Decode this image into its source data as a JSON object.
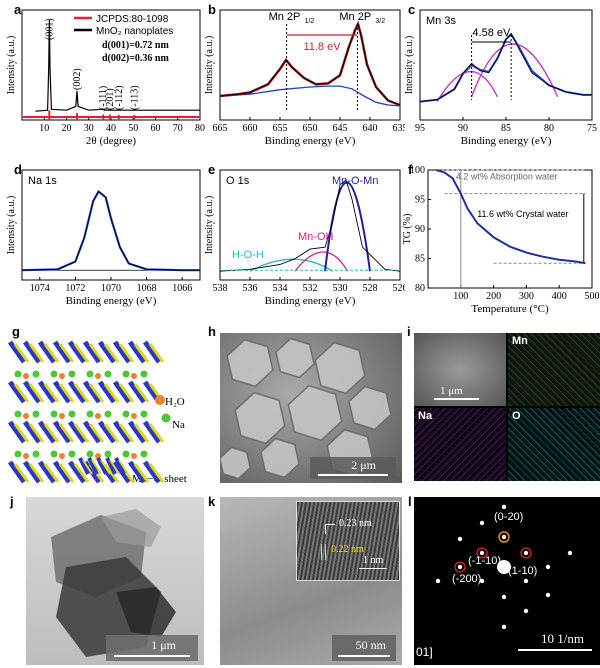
{
  "panel_letters": {
    "a": "a",
    "b": "b",
    "c": "c",
    "d": "d",
    "e": "e",
    "f": "f",
    "g": "g",
    "h": "h",
    "i": "i",
    "j": "j",
    "k": "k",
    "l": "l"
  },
  "chart_data": [
    {
      "panel": "a",
      "type": "line",
      "xlabel": "2θ (degree)",
      "ylabel": "Intensity (a.u.)",
      "xlim": [
        0,
        80
      ],
      "xticks": [
        10,
        20,
        30,
        40,
        50,
        60,
        70,
        80
      ],
      "legend": [
        "JCPDS:80-1098",
        "MnO₂ nanoplates"
      ],
      "legend_extra": [
        "d(001)=0.72 nm",
        "d(002)=0.36 nm"
      ],
      "colors": {
        "reference": "#e8202a",
        "sample": "#000000"
      },
      "peak_labels": [
        {
          "x": 12.3,
          "text": "(001)"
        },
        {
          "x": 24.7,
          "text": "(002)"
        },
        {
          "x": 36.5,
          "text": "(-111)"
        },
        {
          "x": 39.5,
          "text": "(201)"
        },
        {
          "x": 43.5,
          "text": "(-112)"
        },
        {
          "x": 50.5,
          "text": "(-113)"
        }
      ],
      "series": [
        {
          "name": "MnO₂ nanoplates",
          "x": [
            6,
            11.5,
            12.0,
            12.3,
            12.6,
            13.2,
            20,
            24.2,
            24.7,
            25.2,
            30,
            36.5,
            37,
            40,
            50,
            60,
            70,
            80
          ],
          "values": [
            0.05,
            0.06,
            0.5,
            1.0,
            0.5,
            0.07,
            0.06,
            0.1,
            0.26,
            0.1,
            0.06,
            0.07,
            0.06,
            0.06,
            0.06,
            0.06,
            0.06,
            0.06
          ]
        },
        {
          "name": "JCPDS:80-1098",
          "x": [
            12.3,
            24.7,
            36.5,
            39.5,
            43.5,
            50.5
          ],
          "values": [
            0.06,
            0.03,
            0.015,
            0.015,
            0.012,
            0.012
          ]
        }
      ]
    },
    {
      "panel": "b",
      "type": "line",
      "xlabel": "Binding energy (eV)",
      "ylabel": "Intensity (a.u.)",
      "xlim": [
        665,
        635
      ],
      "xticks": [
        665,
        660,
        655,
        650,
        645,
        640,
        635
      ],
      "annotations": [
        "Mn 2P",
        "1/2",
        "Mn 2P",
        "3/2",
        "11.8 eV"
      ],
      "peaks": [
        653.9,
        642.1
      ],
      "colors": {
        "data": "#000000",
        "fit": "#8b1a1a",
        "background": "#1f3fbf",
        "delta": "#c0282f"
      },
      "series": [
        {
          "name": "data",
          "x": [
            665,
            662,
            660,
            657,
            655,
            654,
            653,
            651,
            649,
            647,
            645,
            643.5,
            642.5,
            642,
            641.5,
            640.5,
            639,
            637,
            635
          ],
          "values": [
            0.2,
            0.22,
            0.24,
            0.33,
            0.5,
            0.6,
            0.52,
            0.4,
            0.33,
            0.34,
            0.43,
            0.75,
            0.93,
            1.0,
            0.88,
            0.55,
            0.3,
            0.15,
            0.1
          ]
        },
        {
          "name": "background",
          "x": [
            665,
            660,
            655,
            650,
            647,
            645,
            643,
            641,
            639,
            637,
            635
          ],
          "values": [
            0.2,
            0.22,
            0.27,
            0.3,
            0.31,
            0.31,
            0.28,
            0.2,
            0.13,
            0.1,
            0.09
          ]
        }
      ]
    },
    {
      "panel": "c",
      "type": "line",
      "title": "Mn 3s",
      "xlabel": "Binding energy (eV)",
      "ylabel": "Intensity (a.u.)",
      "xlim": [
        95,
        75
      ],
      "xticks": [
        95,
        90,
        85,
        80,
        75
      ],
      "annotations": [
        "4.58 eV"
      ],
      "peaks": [
        89.0,
        84.4
      ],
      "colors": {
        "data": "#000000",
        "peak": "#cc33cc",
        "envelope": "#1f3fbf"
      },
      "series": [
        {
          "name": "data",
          "x": [
            95,
            93,
            91,
            90,
            89,
            88,
            87,
            86,
            85,
            84.4,
            83.5,
            82,
            80,
            78,
            76,
            75
          ],
          "values": [
            0.15,
            0.17,
            0.28,
            0.45,
            0.55,
            0.47,
            0.45,
            0.6,
            0.8,
            0.86,
            0.7,
            0.45,
            0.32,
            0.25,
            0.22,
            0.22
          ]
        },
        {
          "name": "envelope",
          "x": [
            95,
            93,
            91,
            90,
            89,
            88,
            87,
            86,
            85,
            84.4,
            83.5,
            82,
            80,
            78,
            76,
            75
          ],
          "values": [
            0.15,
            0.17,
            0.28,
            0.44,
            0.53,
            0.48,
            0.46,
            0.6,
            0.8,
            0.85,
            0.72,
            0.47,
            0.32,
            0.25,
            0.22,
            0.22
          ]
        }
      ]
    },
    {
      "panel": "d",
      "type": "line",
      "title": "Na 1s",
      "xlabel": "Binding energy (eV)",
      "ylabel": "Intensity (a.u.)",
      "xlim": [
        1075,
        1065
      ],
      "xticks": [
        1074,
        1072,
        1070,
        1068,
        1066
      ],
      "colors": {
        "data": "#000000",
        "fit": "#1f3fbf"
      },
      "series": [
        {
          "name": "data",
          "x": [
            1075,
            1073,
            1072,
            1071.5,
            1071,
            1070.7,
            1070.3,
            1070,
            1069.5,
            1069,
            1068,
            1066,
            1065
          ],
          "values": [
            0.06,
            0.07,
            0.15,
            0.4,
            0.78,
            0.88,
            0.82,
            0.6,
            0.3,
            0.13,
            0.07,
            0.06,
            0.06
          ]
        }
      ]
    },
    {
      "panel": "e",
      "type": "line",
      "title": "O 1s",
      "xlabel": "Binding energy (eV)",
      "ylabel": "Intensity (a.u.)",
      "xlim": [
        538,
        526
      ],
      "xticks": [
        538,
        536,
        534,
        532,
        530,
        528,
        526
      ],
      "annotations": [
        "Mn-O-Mn",
        "Mn-OH",
        "H-O-H"
      ],
      "colors": {
        "data": "#000000",
        "mnomn": "#1f1f9f",
        "mnoh": "#cc2288",
        "hoh": "#22bbbb",
        "envelope": "#cc2222"
      },
      "series": [
        {
          "name": "data",
          "x": [
            538,
            536,
            534,
            533,
            532,
            531,
            530.5,
            530,
            529.6,
            529.2,
            528.5,
            527,
            526
          ],
          "values": [
            0.05,
            0.07,
            0.12,
            0.18,
            0.28,
            0.3,
            0.55,
            0.95,
            1.0,
            0.8,
            0.3,
            0.07,
            0.05
          ]
        }
      ]
    },
    {
      "panel": "f",
      "type": "line",
      "xlabel": "Temperature (°C)",
      "ylabel": "TG (%)",
      "xlim": [
        0,
        500
      ],
      "ylim": [
        80,
        100
      ],
      "xticks": [
        100,
        200,
        300,
        400,
        500
      ],
      "yticks": [
        80,
        85,
        90,
        95,
        100
      ],
      "annotations": [
        "4.2 wt% Absorption water",
        "11.6 wt% Crystal water"
      ],
      "colors": {
        "line": "#1f2fa6"
      },
      "series": [
        {
          "name": "TG",
          "x": [
            25,
            50,
            75,
            100,
            120,
            150,
            200,
            250,
            300,
            350,
            400,
            450,
            480
          ],
          "values": [
            100,
            99.6,
            98.6,
            96.0,
            93.5,
            91.0,
            88.6,
            87.0,
            86.0,
            85.3,
            84.8,
            84.5,
            84.2
          ]
        }
      ]
    }
  ],
  "panel_g": {
    "h2o_label": "H₂O",
    "na_label": "Na",
    "sheet_label": "Mn−O sheet"
  },
  "panel_h": {
    "scale": "2 μm"
  },
  "panel_i": {
    "scale": "1 μm",
    "maps": [
      "Mn",
      "Na",
      "O"
    ]
  },
  "panel_j": {
    "scale": "1 μm"
  },
  "panel_k": {
    "scale": "50 nm",
    "inset_labels": [
      "0.23 nm",
      "0.22 nm",
      "1 nm"
    ]
  },
  "panel_l": {
    "scale": "10 1/nm",
    "spots": [
      "(0-20)",
      "(-1-10)",
      "(1-10)",
      "(-200)"
    ],
    "zone_fragment": "01]"
  }
}
